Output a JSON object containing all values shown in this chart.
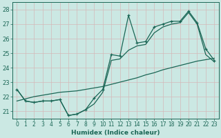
{
  "title": "",
  "xlabel": "Humidex (Indice chaleur)",
  "bg_color": "#cbe8e3",
  "grid_color": "#b0d4cc",
  "line_color": "#1a6655",
  "x": [
    0,
    1,
    2,
    3,
    4,
    5,
    6,
    7,
    8,
    9,
    10,
    11,
    12,
    13,
    14,
    15,
    16,
    17,
    18,
    19,
    20,
    21,
    22,
    23
  ],
  "y_main": [
    22.5,
    21.7,
    21.6,
    21.7,
    21.7,
    21.8,
    20.7,
    20.8,
    21.1,
    21.9,
    22.5,
    24.9,
    24.8,
    27.6,
    25.7,
    25.8,
    26.8,
    27.0,
    27.2,
    27.2,
    27.9,
    27.1,
    25.3,
    24.5
  ],
  "y_low": [
    22.5,
    21.7,
    21.6,
    21.7,
    21.7,
    21.8,
    20.7,
    20.8,
    21.1,
    21.5,
    22.3,
    24.5,
    24.6,
    25.2,
    25.5,
    25.6,
    26.4,
    26.8,
    27.0,
    27.1,
    27.8,
    27.0,
    24.9,
    24.4
  ],
  "y_trend": [
    21.7,
    21.85,
    22.0,
    22.1,
    22.2,
    22.3,
    22.35,
    22.4,
    22.5,
    22.6,
    22.7,
    22.85,
    23.0,
    23.15,
    23.3,
    23.5,
    23.65,
    23.85,
    24.0,
    24.15,
    24.3,
    24.45,
    24.55,
    24.65
  ],
  "ylim": [
    20.5,
    28.5
  ],
  "xlim": [
    -0.5,
    23.5
  ],
  "yticks": [
    21,
    22,
    23,
    24,
    25,
    26,
    27,
    28
  ],
  "xticks": [
    0,
    1,
    2,
    3,
    4,
    5,
    6,
    7,
    8,
    9,
    10,
    11,
    12,
    13,
    14,
    15,
    16,
    17,
    18,
    19,
    20,
    21,
    22,
    23
  ],
  "xlabel_fontsize": 6.5,
  "tick_fontsize": 5.5
}
